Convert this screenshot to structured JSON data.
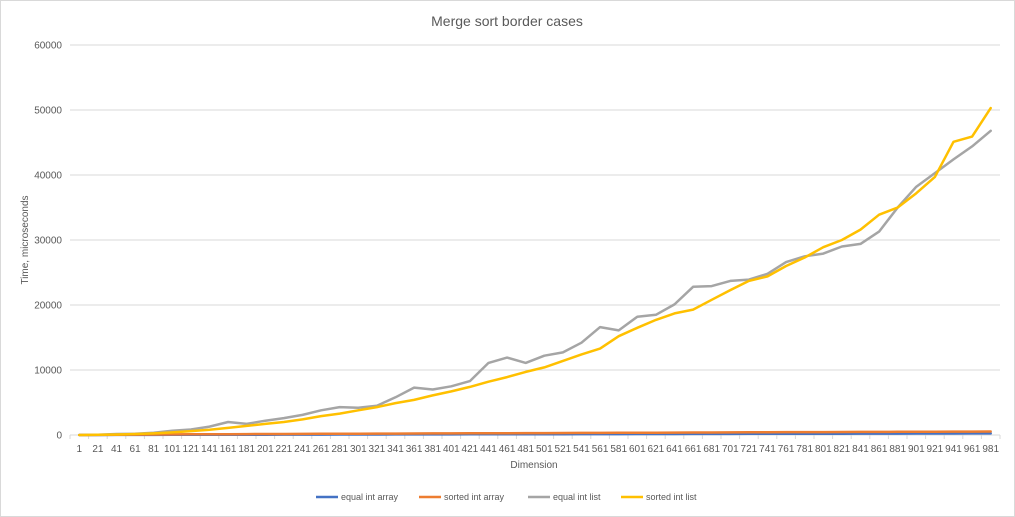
{
  "chart_data": {
    "type": "line",
    "title": "Merge sort border cases",
    "xlabel": "Dimension",
    "ylabel": "Time, microseconds",
    "ylim": [
      0,
      60000
    ],
    "yticks": [
      0,
      10000,
      20000,
      30000,
      40000,
      50000,
      60000
    ],
    "grid": true,
    "legend_position": "bottom",
    "x": [
      1,
      21,
      41,
      61,
      81,
      101,
      121,
      141,
      161,
      181,
      201,
      221,
      241,
      261,
      281,
      301,
      321,
      341,
      361,
      381,
      401,
      421,
      441,
      461,
      481,
      501,
      521,
      541,
      561,
      581,
      601,
      621,
      641,
      661,
      681,
      701,
      721,
      741,
      761,
      781,
      801,
      821,
      841,
      861,
      881,
      901,
      921,
      941,
      961,
      981
    ],
    "series": [
      {
        "name": "equal int array",
        "color": "#4472c4",
        "values": [
          0,
          5,
          10,
          15,
          20,
          25,
          30,
          35,
          40,
          45,
          50,
          55,
          60,
          65,
          70,
          75,
          80,
          85,
          90,
          95,
          100,
          105,
          110,
          115,
          120,
          125,
          130,
          135,
          140,
          145,
          150,
          155,
          160,
          165,
          170,
          175,
          180,
          185,
          190,
          195,
          200,
          205,
          210,
          215,
          220,
          225,
          230,
          235,
          240,
          245
        ]
      },
      {
        "name": "sorted int array",
        "color": "#ed7d31",
        "values": [
          0,
          20,
          40,
          60,
          80,
          100,
          110,
          120,
          130,
          140,
          150,
          160,
          170,
          180,
          190,
          200,
          210,
          220,
          230,
          240,
          250,
          260,
          270,
          280,
          290,
          300,
          310,
          320,
          330,
          340,
          350,
          360,
          370,
          380,
          390,
          400,
          410,
          420,
          450,
          440,
          450,
          460,
          470,
          480,
          490,
          500,
          510,
          520,
          530,
          540
        ]
      },
      {
        "name": "equal int list",
        "color": "#a5a5a5",
        "values": [
          0,
          50,
          150,
          200,
          350,
          650,
          850,
          1300,
          2000,
          1700,
          2200,
          2600,
          3100,
          3800,
          4300,
          4200,
          4500,
          5800,
          7300,
          7000,
          7500,
          8300,
          11100,
          11900,
          11100,
          12200,
          12700,
          14200,
          16600,
          16100,
          18200,
          18500,
          20100,
          22800,
          22900,
          23700,
          23900,
          24800,
          26600,
          27500,
          27900,
          29000,
          29400,
          31300,
          35000,
          38200,
          40300,
          42400,
          44400,
          46800
        ]
      },
      {
        "name": "sorted int list",
        "color": "#ffc000",
        "values": [
          0,
          30,
          80,
          150,
          250,
          400,
          600,
          800,
          1100,
          1400,
          1700,
          2000,
          2400,
          2900,
          3300,
          3800,
          4300,
          4900,
          5400,
          6100,
          6700,
          7400,
          8200,
          8900,
          9700,
          10400,
          11400,
          12400,
          13300,
          15200,
          16500,
          17700,
          18700,
          19300,
          20800,
          22300,
          23700,
          24400,
          26000,
          27300,
          28900,
          30000,
          31600,
          33900,
          35000,
          37200,
          39700,
          45100,
          45900,
          50300
        ]
      }
    ]
  }
}
